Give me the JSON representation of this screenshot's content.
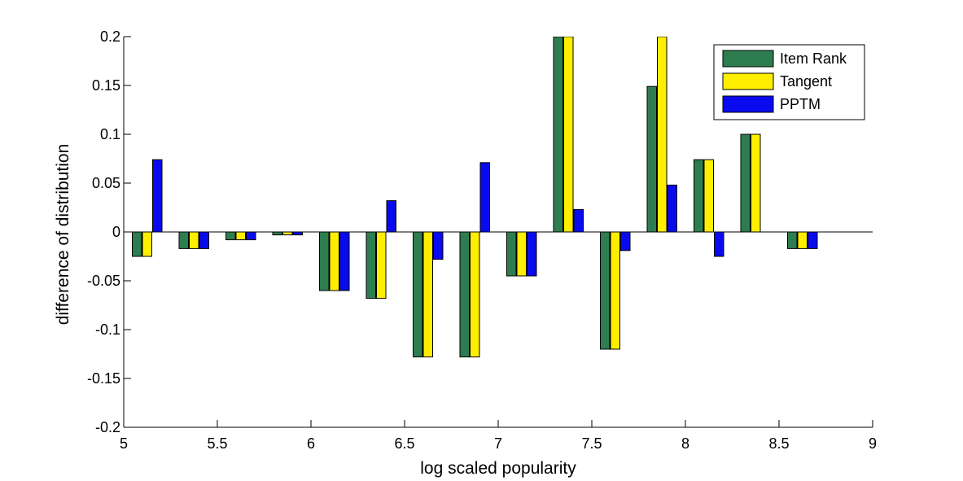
{
  "chart_data": {
    "type": "bar",
    "xlabel": "log scaled popularity",
    "ylabel": "difference of distribution",
    "xlim": [
      5,
      9
    ],
    "ylim": [
      -0.2,
      0.2
    ],
    "xticks": [
      "5",
      "5.5",
      "6",
      "6.5",
      "7",
      "7.5",
      "8",
      "8.5",
      "9"
    ],
    "yticks": [
      "-0.2",
      "-0.15",
      "-0.1",
      "-0.05",
      "0",
      "0.05",
      "0.1",
      "0.15",
      "0.2"
    ],
    "grid": false,
    "legend_position": "top-right",
    "x": [
      5.125,
      5.375,
      5.625,
      5.875,
      6.125,
      6.375,
      6.625,
      6.875,
      7.125,
      7.375,
      7.625,
      7.875,
      8.125,
      8.375,
      8.625
    ],
    "series": [
      {
        "name": "Item Rank",
        "color": "#2e7d50",
        "values": [
          -0.025,
          -0.017,
          -0.008,
          -0.003,
          -0.06,
          -0.068,
          -0.128,
          -0.128,
          -0.045,
          0.2,
          -0.12,
          0.149,
          0.074,
          0.1,
          -0.017
        ]
      },
      {
        "name": "Tangent",
        "color": "#ffee00",
        "values": [
          -0.025,
          -0.017,
          -0.008,
          -0.003,
          -0.06,
          -0.068,
          -0.128,
          -0.128,
          -0.045,
          0.2,
          -0.12,
          0.2,
          0.074,
          0.1,
          -0.017
        ]
      },
      {
        "name": "PPTM",
        "color": "#0a0aee",
        "values": [
          0.074,
          -0.017,
          -0.008,
          -0.003,
          -0.06,
          0.032,
          -0.028,
          0.071,
          -0.045,
          0.023,
          -0.019,
          0.048,
          -0.025,
          0,
          -0.017
        ]
      }
    ]
  }
}
